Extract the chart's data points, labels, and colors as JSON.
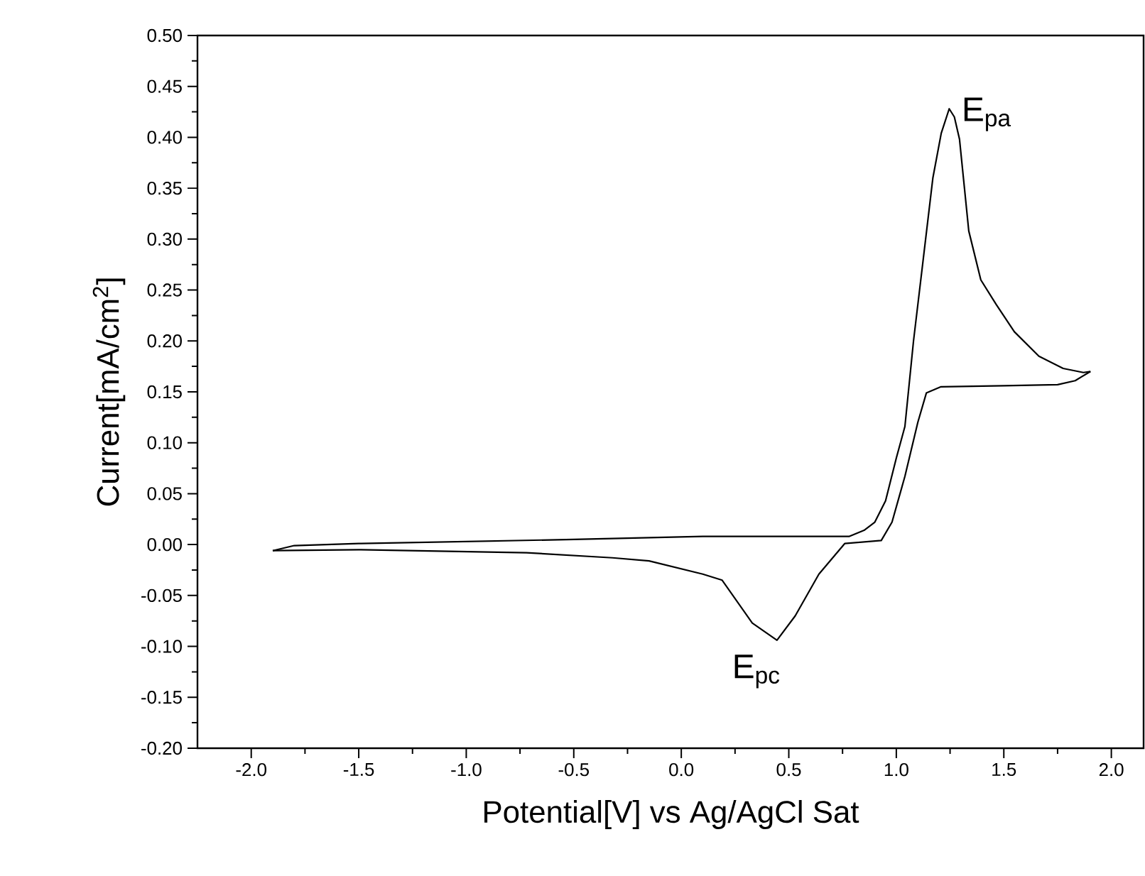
{
  "chart_data": {
    "type": "line",
    "xlabel": "Potential[V] vs Ag/AgCl Sat",
    "ylabel": "Current[mA/cm$^{2}$]",
    "xlim": [
      -2.25,
      2.15
    ],
    "ylim": [
      -0.2,
      0.5
    ],
    "xticks": [
      {
        "value": -2,
        "label": "-2.0"
      },
      {
        "value": -1.5,
        "label": "-1.5"
      },
      {
        "value": -1,
        "label": "-1.0"
      },
      {
        "value": -0.5,
        "label": "-0.5"
      },
      {
        "value": 0,
        "label": "0.0"
      },
      {
        "value": 0.5,
        "label": "0.5"
      },
      {
        "value": 1,
        "label": "1.0"
      },
      {
        "value": 1.5,
        "label": "1.5"
      },
      {
        "value": 2,
        "label": "2.0"
      }
    ],
    "yticks": [
      {
        "value": -0.2,
        "label": "-0.20"
      },
      {
        "value": -0.15,
        "label": "-0.15"
      },
      {
        "value": -0.1,
        "label": "-0.10"
      },
      {
        "value": -0.05,
        "label": "-0.05"
      },
      {
        "value": 0,
        "label": "0.00"
      },
      {
        "value": 0.05,
        "label": "0.05"
      },
      {
        "value": 0.1,
        "label": "0.10"
      },
      {
        "value": 0.15,
        "label": "0.15"
      },
      {
        "value": 0.2,
        "label": "0.20"
      },
      {
        "value": 0.25,
        "label": "0.25"
      },
      {
        "value": 0.3,
        "label": "0.30"
      },
      {
        "value": 0.35,
        "label": "0.35"
      },
      {
        "value": 0.4,
        "label": "0.40"
      },
      {
        "value": 0.45,
        "label": "0.45"
      },
      {
        "value": 0.5,
        "label": "0.50"
      }
    ],
    "marker": "none",
    "line_style": "solid",
    "annotations": [
      {
        "text": "E$_{pa}$",
        "x": 1.25,
        "y": 0.428
      },
      {
        "text": "E$_{pc}$",
        "x": 0.45,
        "y": -0.094
      }
    ],
    "series": [
      {
        "color": "#000000",
        "x": [
          -1.9,
          -1.8,
          -1.5,
          -0.5,
          0.1,
          0.78,
          0.85,
          0.9,
          0.95,
          1.0,
          1.04,
          1.08,
          1.124,
          1.17,
          1.209,
          1.246,
          1.27,
          1.294,
          1.337,
          1.393,
          1.464,
          1.549,
          1.663,
          1.776,
          1.87,
          1.903
        ],
        "values": [
          -0.006,
          -0.001,
          0.001,
          0.005,
          0.008,
          0.008,
          0.014,
          0.022,
          0.043,
          0.085,
          0.116,
          0.2,
          0.278,
          0.36,
          0.404,
          0.428,
          0.42,
          0.398,
          0.308,
          0.26,
          0.236,
          0.209,
          0.185,
          0.173,
          0.169,
          0.17
        ]
      },
      {
        "color": "#000000",
        "x": [
          1.903,
          1.832,
          1.75,
          1.5,
          1.208,
          1.14,
          1.1,
          1.04,
          0.98,
          0.93,
          0.76,
          0.64,
          0.53,
          0.445,
          0.33,
          0.19,
          0.1,
          -0.15,
          -0.32,
          -0.72,
          -1.5,
          -1.9
        ],
        "values": [
          0.17,
          0.161,
          0.157,
          0.156,
          0.155,
          0.149,
          0.12,
          0.067,
          0.022,
          0.004,
          0.001,
          -0.029,
          -0.07,
          -0.094,
          -0.077,
          -0.035,
          -0.029,
          -0.016,
          -0.013,
          -0.008,
          -0.005,
          -0.006
        ]
      }
    ]
  }
}
